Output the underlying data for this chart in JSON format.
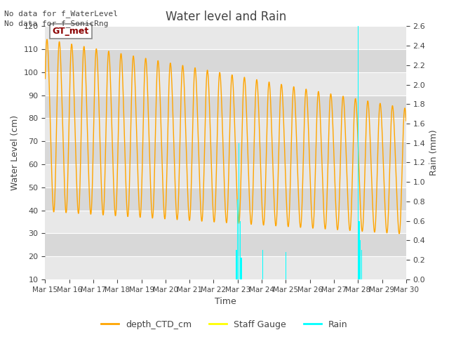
{
  "title": "Water level and Rain",
  "xlabel": "Time",
  "ylabel_left": "Water Level (cm)",
  "ylabel_right": "Rain (mm)",
  "ylim_left": [
    10,
    120
  ],
  "ylim_right": [
    0.0,
    2.6
  ],
  "yticks_left": [
    10,
    20,
    30,
    40,
    50,
    60,
    70,
    80,
    90,
    100,
    110,
    120
  ],
  "yticks_right": [
    0.0,
    0.2,
    0.4,
    0.6,
    0.8,
    1.0,
    1.2,
    1.4,
    1.6,
    1.8,
    2.0,
    2.2,
    2.4,
    2.6
  ],
  "no_data_text": [
    "No data for f_WaterLevel",
    "No data for f_SonicRng"
  ],
  "gt_met_label": "GT_met",
  "xtick_labels": [
    "Mar 15",
    "Mar 16",
    "Mar 17",
    "Mar 18",
    "Mar 19",
    "Mar 20",
    "Mar 21",
    "Mar 22",
    "Mar 23",
    "Mar 24",
    "Mar 25",
    "Mar 26",
    "Mar 27",
    "Mar 28",
    "Mar 29",
    "Mar 30"
  ],
  "ctd_color": "#FFA500",
  "staff_color": "#FFFF00",
  "rain_color": "#00FFFF",
  "bg_light": "#DCDCDC",
  "bg_dark": "#C8C8C8",
  "legend_labels": [
    "depth_CTD_cm",
    "Staff Gauge",
    "Rain"
  ],
  "grid_color": "white",
  "title_color": "#444444",
  "label_color": "#444444"
}
